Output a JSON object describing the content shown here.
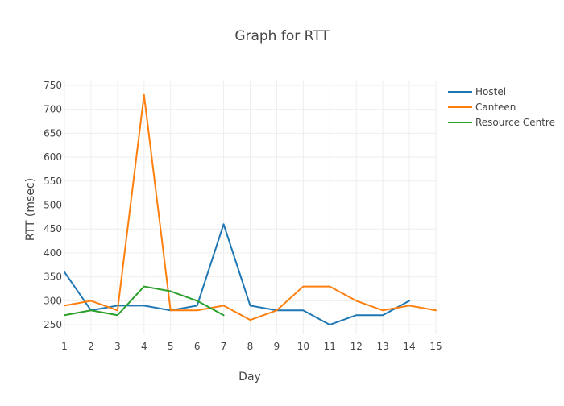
{
  "chart_data": {
    "type": "line",
    "title": "Graph for RTT",
    "xlabel": "Day",
    "ylabel": "RTT (msec)",
    "xlim": [
      1,
      15
    ],
    "ylim": [
      230,
      760
    ],
    "x_ticks": [
      1,
      2,
      3,
      4,
      5,
      6,
      7,
      8,
      9,
      10,
      11,
      12,
      13,
      14,
      15
    ],
    "y_ticks": [
      250,
      300,
      350,
      400,
      450,
      500,
      550,
      600,
      650,
      700,
      750
    ],
    "grid": true,
    "legend_position": "top-right",
    "series": [
      {
        "name": "Hostel",
        "color": "#1f77b4",
        "x": [
          1,
          2,
          3,
          4,
          5,
          6,
          7,
          8,
          9,
          10,
          11,
          12,
          13,
          14
        ],
        "y": [
          360,
          280,
          290,
          290,
          280,
          290,
          460,
          290,
          280,
          280,
          250,
          270,
          270,
          300
        ]
      },
      {
        "name": "Canteen",
        "color": "#ff7f0e",
        "x": [
          1,
          2,
          3,
          4,
          5,
          6,
          7,
          8,
          9,
          10,
          11,
          12,
          13,
          14,
          15
        ],
        "y": [
          290,
          300,
          280,
          730,
          280,
          280,
          290,
          260,
          280,
          330,
          330,
          300,
          280,
          290,
          280
        ]
      },
      {
        "name": "Resource Centre",
        "color": "#2ca02c",
        "x": [
          1,
          2,
          3,
          4,
          5,
          6,
          7
        ],
        "y": [
          270,
          280,
          270,
          330,
          320,
          300,
          270
        ]
      }
    ]
  }
}
